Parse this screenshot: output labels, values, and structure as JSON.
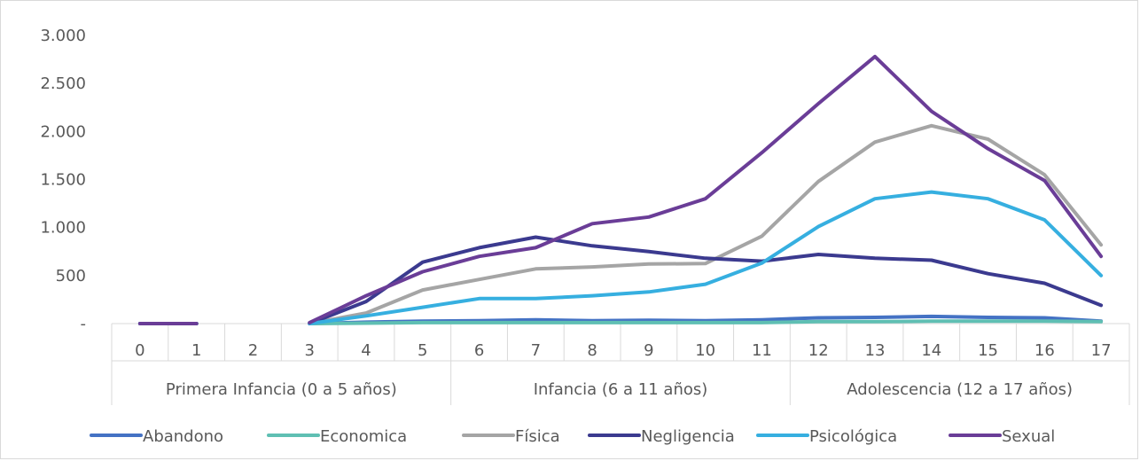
{
  "chart_data": {
    "type": "line",
    "title": "",
    "xlabel": "",
    "ylabel": "",
    "ylim": [
      0,
      3000
    ],
    "y_ticks": [
      {
        "value": 0,
        "label": "-"
      },
      {
        "value": 500,
        "label": "500"
      },
      {
        "value": 1000,
        "label": "1.000"
      },
      {
        "value": 1500,
        "label": "1.500"
      },
      {
        "value": 2000,
        "label": "2.000"
      },
      {
        "value": 2500,
        "label": "2.500"
      },
      {
        "value": 3000,
        "label": "3.000"
      }
    ],
    "grid": false,
    "legend_position": "bottom",
    "categories": [
      "0",
      "1",
      "2",
      "3",
      "4",
      "5",
      "6",
      "7",
      "8",
      "9",
      "10",
      "11",
      "12",
      "13",
      "14",
      "15",
      "16",
      "17"
    ],
    "groups": [
      {
        "label": "Primera Infancia (0 a 5 años)",
        "start": 0,
        "end": 5
      },
      {
        "label": "Infancia (6 a 11 años)",
        "start": 6,
        "end": 11
      },
      {
        "label": "Adolescencia (12 a 17 años)",
        "start": 12,
        "end": 17
      }
    ],
    "series": [
      {
        "name": "Abandono",
        "color": "#4472c4",
        "values": [
          0,
          0,
          null,
          0,
          15,
          25,
          30,
          40,
          30,
          35,
          30,
          40,
          60,
          65,
          75,
          65,
          60,
          25
        ]
      },
      {
        "name": "Economica",
        "color": "#5fbfb3",
        "values": [
          0,
          0,
          null,
          0,
          5,
          10,
          10,
          10,
          10,
          10,
          10,
          10,
          20,
          20,
          25,
          25,
          25,
          20
        ]
      },
      {
        "name": "Física",
        "color": "#a5a5a5",
        "values": [
          0,
          0,
          null,
          0,
          110,
          350,
          460,
          570,
          590,
          620,
          625,
          910,
          1480,
          1890,
          2060,
          1920,
          1550,
          820
        ]
      },
      {
        "name": "Negligencia",
        "color": "#3b3a8f",
        "values": [
          0,
          0,
          null,
          0,
          230,
          640,
          790,
          900,
          810,
          750,
          680,
          650,
          720,
          680,
          660,
          520,
          420,
          190
        ]
      },
      {
        "name": "Psicológica",
        "color": "#36afe0",
        "values": [
          0,
          0,
          null,
          0,
          80,
          170,
          260,
          260,
          290,
          330,
          410,
          630,
          1010,
          1300,
          1370,
          1300,
          1080,
          500
        ]
      },
      {
        "name": "Sexual",
        "color": "#6a3d97",
        "values": [
          0,
          0,
          null,
          10,
          290,
          540,
          700,
          790,
          1040,
          1110,
          1300,
          1780,
          2290,
          2780,
          2210,
          1820,
          1490,
          700
        ]
      }
    ]
  }
}
